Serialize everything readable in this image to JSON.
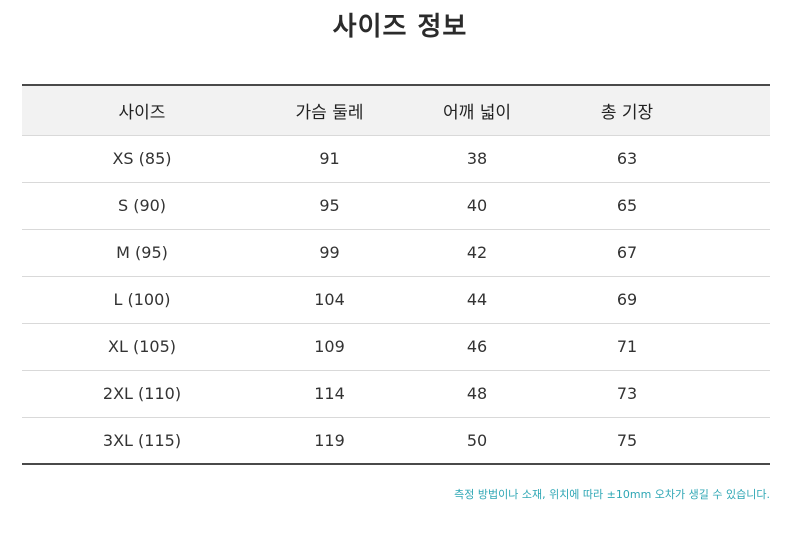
{
  "title": "사이즈 정보",
  "table": {
    "headers": [
      "사이즈",
      "가슴 둘레",
      "어깨 넓이",
      "총 기장"
    ],
    "rows": [
      {
        "size": "XS (85)",
        "chest": "91",
        "shoulder": "38",
        "length": "63"
      },
      {
        "size": "S (90)",
        "chest": "95",
        "shoulder": "40",
        "length": "65"
      },
      {
        "size": "M (95)",
        "chest": "99",
        "shoulder": "42",
        "length": "67"
      },
      {
        "size": "L (100)",
        "chest": "104",
        "shoulder": "44",
        "length": "69"
      },
      {
        "size": "XL (105)",
        "chest": "109",
        "shoulder": "46",
        "length": "71"
      },
      {
        "size": "2XL (110)",
        "chest": "114",
        "shoulder": "48",
        "length": "73"
      },
      {
        "size": "3XL (115)",
        "chest": "119",
        "shoulder": "50",
        "length": "75"
      }
    ]
  },
  "note": "측정 방법이나 소재, 위치에 따라 ±10mm 오차가 생길 수 있습니다.",
  "colors": {
    "note": "#2fa7b5",
    "header_bg": "#f2f2f2"
  }
}
